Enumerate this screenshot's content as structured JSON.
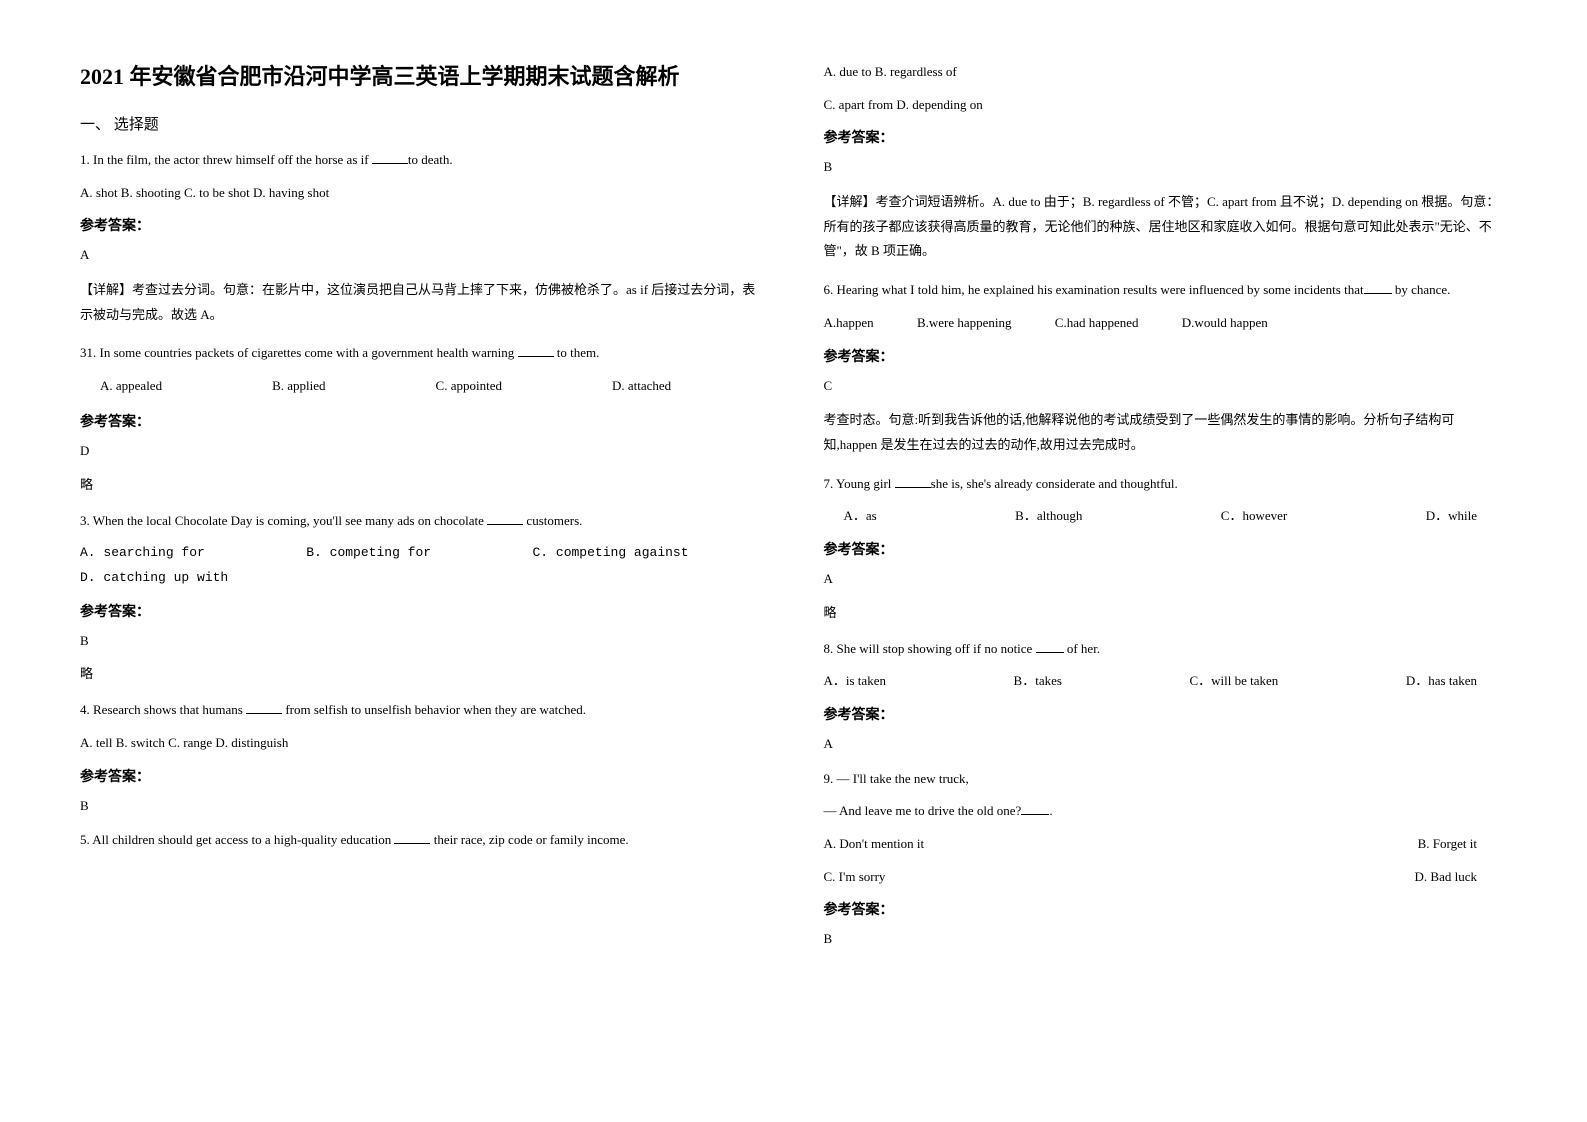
{
  "doc": {
    "title": "2021 年安徽省合肥市沿河中学高三英语上学期期末试题含解析",
    "section1": "一、 选择题",
    "answer_label": "参考答案：",
    "lue": "略"
  },
  "q1": {
    "text_a": "1. In the film, the actor threw himself off the horse as if ",
    "text_b": "to death.",
    "opts": "A. shot   B. shooting   C. to be shot   D. having shot",
    "ans": "A",
    "explain": "【详解】考查过去分词。句意：在影片中，这位演员把自己从马背上摔了下来，仿佛被枪杀了。as if 后接过去分词，表示被动与完成。故选 A。"
  },
  "q2": {
    "text_a": "31. In some countries packets of cigarettes come with a government health warning ",
    "text_b": " to them.",
    "optA": "A. appealed",
    "optB": "B. applied",
    "optC": "C. appointed",
    "optD": "D. attached",
    "ans": "D"
  },
  "q3": {
    "text_a": "3. When the local Chocolate Day is coming, you'll see many ads on chocolate ",
    "text_b": " customers.",
    "optA": "A. searching for",
    "optB": "B. competing for",
    "optC": "C. competing against",
    "optD": "D. catching up with",
    "ans": "B"
  },
  "q4": {
    "text_a": "4. Research shows that humans ",
    "text_b": " from selfish to unselfish behavior when they are watched.",
    "opts": "A. tell     B. switch     C. range     D. distinguish",
    "ans": "B"
  },
  "q5": {
    "text_a": "5. All children should get access to a high-quality education ",
    "text_b": " their race, zip code or family income.",
    "opts_l1": "A. due to    B. regardless of",
    "opts_l2": "C. apart from   D. depending on",
    "ans": "B",
    "explain": "【详解】考查介词短语辨析。A. due to 由于；B. regardless of 不管；C. apart from 且不说；D. depending on 根据。句意：所有的孩子都应该获得高质量的教育，无论他们的种族、居住地区和家庭收入如何。根据句意可知此处表示\"无论、不管\"，故 B 项正确。"
  },
  "q6": {
    "text_a": "6. Hearing what I told him, he explained his examination results were influenced by some incidents that",
    "text_b": " by chance.",
    "optA": "A.happen",
    "optB": "B.were happening",
    "optC": "C.had happened",
    "optD": "D.would happen",
    "ans": "C",
    "explain": "考查时态。句意:听到我告诉他的话,他解释说他的考试成绩受到了一些偶然发生的事情的影响。分析句子结构可知,happen 是发生在过去的过去的动作,故用过去完成时。"
  },
  "q7": {
    "text_a": "7. Young girl ",
    "text_b": "she is, she's already considerate and thoughtful.",
    "optA": "A．as",
    "optB": "B．although",
    "optC": "C．however",
    "optD": "D．while",
    "ans": "A"
  },
  "q8": {
    "text_a": "8. She will stop showing off if no notice ",
    "text_b": " of her.",
    "optA": "A．is taken",
    "optB": "B．takes",
    "optC": "C．will be taken",
    "optD": "D．has taken",
    "ans": "A"
  },
  "q9": {
    "l1": "9. — I'll take the new truck,",
    "l2_a": "— And leave me to drive the old one?",
    "l2_b": ".",
    "optA": "A. Don't mention it",
    "optB": "B. Forget it",
    "optC": "C. I'm sorry",
    "optD": "D. Bad luck",
    "ans": "B"
  }
}
